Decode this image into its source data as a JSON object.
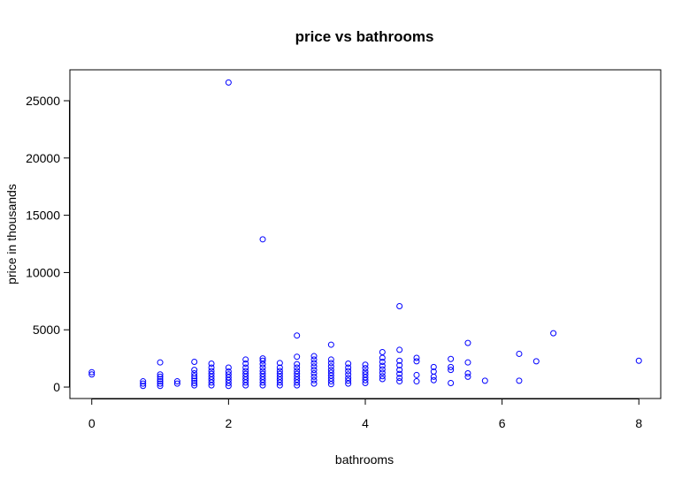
{
  "chart_data": {
    "type": "scatter",
    "title": "price vs bathrooms",
    "xlabel": "bathrooms",
    "ylabel": "price in thousands",
    "xlim": [
      -0.32,
      8.32
    ],
    "ylim": [
      -1000,
      27700
    ],
    "xticks": [
      0,
      2,
      4,
      6,
      8
    ],
    "yticks": [
      0,
      5000,
      10000,
      15000,
      20000,
      25000
    ],
    "grid": false,
    "legend": "none",
    "point_color": "#0000ff",
    "series": [
      {
        "points": [
          [
            0,
            1100
          ],
          [
            0,
            1300
          ],
          [
            0.75,
            100
          ],
          [
            0.75,
            300
          ],
          [
            0.75,
            500
          ],
          [
            1,
            100
          ],
          [
            1,
            300
          ],
          [
            1,
            500
          ],
          [
            1,
            700
          ],
          [
            1,
            900
          ],
          [
            1,
            1100
          ],
          [
            1,
            2150
          ],
          [
            1.25,
            300
          ],
          [
            1.25,
            500
          ],
          [
            1.5,
            150
          ],
          [
            1.5,
            350
          ],
          [
            1.5,
            550
          ],
          [
            1.5,
            750
          ],
          [
            1.5,
            950
          ],
          [
            1.5,
            1200
          ],
          [
            1.5,
            1500
          ],
          [
            1.5,
            2200
          ],
          [
            1.75,
            150
          ],
          [
            1.75,
            400
          ],
          [
            1.75,
            650
          ],
          [
            1.75,
            900
          ],
          [
            1.75,
            1150
          ],
          [
            1.75,
            1400
          ],
          [
            1.75,
            1700
          ],
          [
            1.75,
            2050
          ],
          [
            2,
            100
          ],
          [
            2,
            350
          ],
          [
            2,
            600
          ],
          [
            2,
            850
          ],
          [
            2,
            1100
          ],
          [
            2,
            1350
          ],
          [
            2,
            1700
          ],
          [
            2,
            26590
          ],
          [
            2.25,
            150
          ],
          [
            2.25,
            400
          ],
          [
            2.25,
            650
          ],
          [
            2.25,
            900
          ],
          [
            2.25,
            1150
          ],
          [
            2.25,
            1400
          ],
          [
            2.25,
            1700
          ],
          [
            2.25,
            2050
          ],
          [
            2.25,
            2400
          ],
          [
            2.5,
            150
          ],
          [
            2.5,
            400
          ],
          [
            2.5,
            650
          ],
          [
            2.5,
            900
          ],
          [
            2.5,
            1150
          ],
          [
            2.5,
            1400
          ],
          [
            2.5,
            1700
          ],
          [
            2.5,
            2000
          ],
          [
            2.5,
            2300
          ],
          [
            2.5,
            2500
          ],
          [
            2.5,
            12900
          ],
          [
            2.75,
            150
          ],
          [
            2.75,
            400
          ],
          [
            2.75,
            650
          ],
          [
            2.75,
            900
          ],
          [
            2.75,
            1150
          ],
          [
            2.75,
            1400
          ],
          [
            2.75,
            1700
          ],
          [
            2.75,
            2100
          ],
          [
            3,
            150
          ],
          [
            3,
            400
          ],
          [
            3,
            650
          ],
          [
            3,
            900
          ],
          [
            3,
            1150
          ],
          [
            3,
            1400
          ],
          [
            3,
            1700
          ],
          [
            3,
            2000
          ],
          [
            3,
            2650
          ],
          [
            3,
            4500
          ],
          [
            3.25,
            300
          ],
          [
            3.25,
            600
          ],
          [
            3.25,
            900
          ],
          [
            3.25,
            1200
          ],
          [
            3.25,
            1500
          ],
          [
            3.25,
            1800
          ],
          [
            3.25,
            2100
          ],
          [
            3.25,
            2400
          ],
          [
            3.25,
            2700
          ],
          [
            3.5,
            250
          ],
          [
            3.5,
            500
          ],
          [
            3.5,
            750
          ],
          [
            3.5,
            1000
          ],
          [
            3.5,
            1250
          ],
          [
            3.5,
            1500
          ],
          [
            3.5,
            1800
          ],
          [
            3.5,
            2100
          ],
          [
            3.5,
            2400
          ],
          [
            3.5,
            3700
          ],
          [
            3.75,
            300
          ],
          [
            3.75,
            550
          ],
          [
            3.75,
            800
          ],
          [
            3.75,
            1100
          ],
          [
            3.75,
            1400
          ],
          [
            3.75,
            1700
          ],
          [
            3.75,
            2050
          ],
          [
            4,
            350
          ],
          [
            4,
            600
          ],
          [
            4,
            850
          ],
          [
            4,
            1100
          ],
          [
            4,
            1350
          ],
          [
            4,
            1650
          ],
          [
            4,
            1950
          ],
          [
            4.25,
            700
          ],
          [
            4.25,
            950
          ],
          [
            4.25,
            1250
          ],
          [
            4.25,
            1550
          ],
          [
            4.25,
            1850
          ],
          [
            4.25,
            2200
          ],
          [
            4.25,
            2550
          ],
          [
            4.25,
            3050
          ],
          [
            4.5,
            500
          ],
          [
            4.5,
            800
          ],
          [
            4.5,
            1150
          ],
          [
            4.5,
            1500
          ],
          [
            4.5,
            1900
          ],
          [
            4.5,
            2300
          ],
          [
            4.5,
            3250
          ],
          [
            4.5,
            7060
          ],
          [
            4.75,
            500
          ],
          [
            4.75,
            1050
          ],
          [
            4.75,
            2250
          ],
          [
            4.75,
            2550
          ],
          [
            5,
            600
          ],
          [
            5,
            900
          ],
          [
            5,
            1350
          ],
          [
            5,
            1750
          ],
          [
            5.25,
            350
          ],
          [
            5.25,
            1500
          ],
          [
            5.25,
            1750
          ],
          [
            5.25,
            2450
          ],
          [
            5.5,
            900
          ],
          [
            5.5,
            1200
          ],
          [
            5.5,
            2150
          ],
          [
            5.5,
            3850
          ],
          [
            5.75,
            550
          ],
          [
            6.25,
            550
          ],
          [
            6.25,
            2900
          ],
          [
            6.5,
            2250
          ],
          [
            6.75,
            4700
          ],
          [
            8,
            2300
          ]
        ]
      }
    ]
  }
}
